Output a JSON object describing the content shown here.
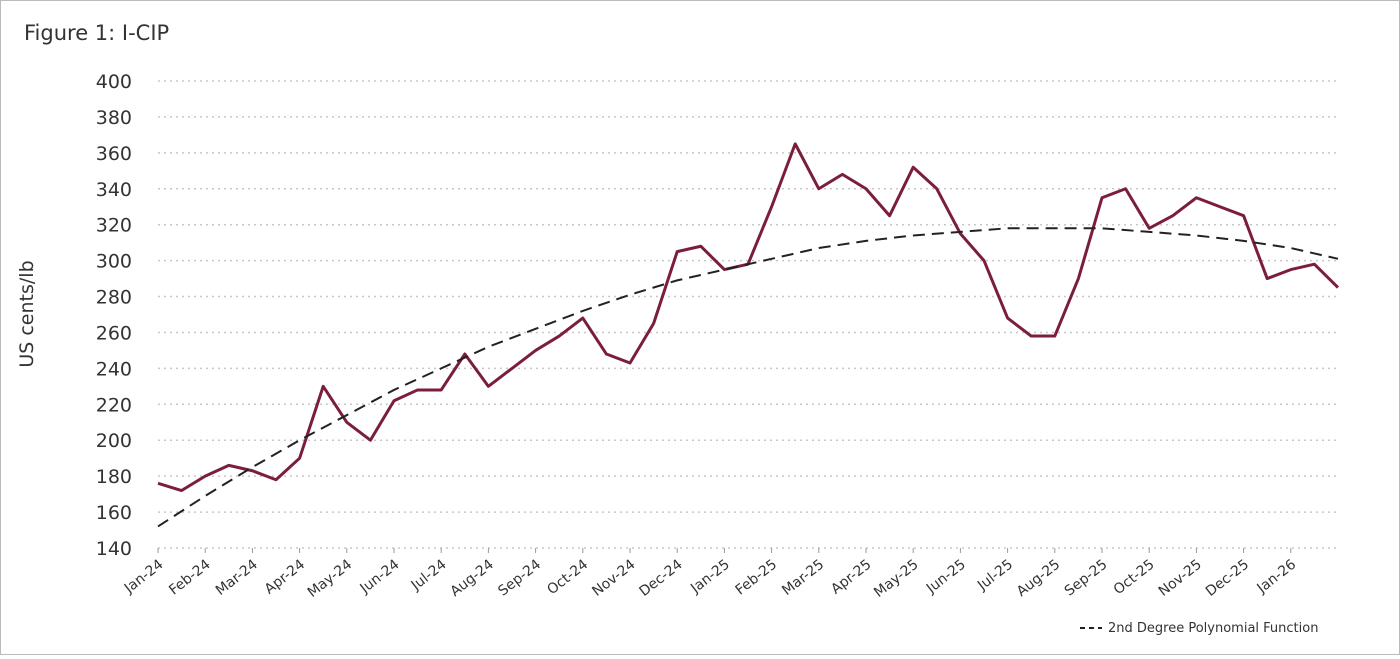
{
  "chart_data": {
    "type": "line",
    "title": "Figure 1: I-CIP",
    "y_label": "US cents/lb",
    "xlim": [
      0,
      25
    ],
    "xticks": [
      {
        "value": 0,
        "label": "Jan-24"
      },
      {
        "value": 1,
        "label": "Feb-24"
      },
      {
        "value": 2,
        "label": "Mar-24"
      },
      {
        "value": 3,
        "label": "Apr-24"
      },
      {
        "value": 4,
        "label": "May-24"
      },
      {
        "value": 5,
        "label": "Jun-24"
      },
      {
        "value": 6,
        "label": "Jul-24"
      },
      {
        "value": 7,
        "label": "Aug-24"
      },
      {
        "value": 8,
        "label": "Sep-24"
      },
      {
        "value": 9,
        "label": "Oct-24"
      },
      {
        "value": 10,
        "label": "Nov-24"
      },
      {
        "value": 11,
        "label": "Dec-24"
      },
      {
        "value": 12,
        "label": "Jan-25"
      },
      {
        "value": 13,
        "label": "Feb-25"
      },
      {
        "value": 14,
        "label": "Mar-25"
      },
      {
        "value": 15,
        "label": "Apr-25"
      },
      {
        "value": 16,
        "label": "May-25"
      },
      {
        "value": 17,
        "label": "Jun-25"
      },
      {
        "value": 18,
        "label": "Jul-25"
      },
      {
        "value": 19,
        "label": "Aug-25"
      },
      {
        "value": 20,
        "label": "Sep-25"
      },
      {
        "value": 21,
        "label": "Oct-25"
      },
      {
        "value": 22,
        "label": "Nov-25"
      },
      {
        "value": 23,
        "label": "Dec-25"
      },
      {
        "value": 24,
        "label": "Jan-26"
      }
    ],
    "ylim": [
      140,
      400
    ],
    "yticks": [
      140,
      160,
      180,
      200,
      220,
      240,
      260,
      280,
      300,
      320,
      340,
      360,
      380,
      400
    ],
    "grid": true,
    "legend": "bottom-right",
    "series": [
      {
        "color": "#7b1e3a",
        "dash": false,
        "in_legend": false,
        "x": [
          0,
          0.5,
          1,
          1.5,
          2,
          2.5,
          3,
          3.5,
          4,
          4.5,
          5,
          5.5,
          6,
          6.5,
          7,
          7.5,
          8,
          8.5,
          9,
          9.5,
          10,
          10.5,
          11,
          11.5,
          12,
          12.5,
          13,
          13.5,
          14,
          14.5,
          15,
          15.5,
          16,
          16.5,
          17,
          17.5,
          18,
          18.5,
          19,
          19.5,
          20,
          20.5,
          21,
          21.5,
          22,
          22.5,
          23,
          23.5,
          24,
          24.5,
          25
        ],
        "values": [
          176,
          172,
          180,
          186,
          183,
          178,
          190,
          230,
          210,
          200,
          222,
          228,
          228,
          248,
          230,
          240,
          250,
          258,
          268,
          248,
          243,
          265,
          305,
          308,
          295,
          298,
          330,
          365,
          340,
          348,
          340,
          325,
          352,
          340,
          315,
          300,
          268,
          258,
          258,
          290,
          335,
          340,
          318,
          325,
          335,
          330,
          325,
          290,
          295,
          298,
          285
        ]
      },
      {
        "name": "2nd Degree Polynomial Function",
        "color": "#222222",
        "dash": true,
        "in_legend": true,
        "x": [
          0,
          1,
          2,
          3,
          4,
          5,
          6,
          7,
          8,
          9,
          10,
          11,
          12,
          13,
          14,
          15,
          16,
          17,
          18,
          19,
          20,
          21,
          22,
          23,
          24,
          25
        ],
        "values": [
          152,
          169,
          185,
          200,
          214,
          228,
          240,
          252,
          262,
          272,
          281,
          289,
          295,
          301,
          307,
          311,
          314,
          316,
          318,
          318,
          318,
          316,
          314,
          311,
          307,
          301
        ]
      }
    ]
  }
}
